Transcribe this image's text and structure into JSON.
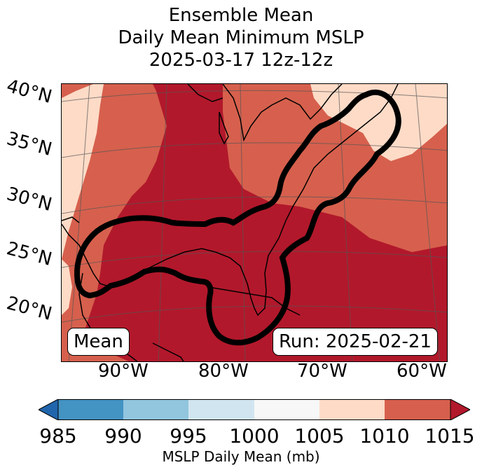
{
  "title": {
    "line1": "Ensemble Mean",
    "line2": "Daily Mean Minimum MSLP",
    "line3": "2025-03-17 12z-12z"
  },
  "map": {
    "lat_labels": [
      "40°N",
      "35°N",
      "30°N",
      "25°N",
      "20°N"
    ],
    "lon_labels": [
      "90°W",
      "80°W",
      "70°W",
      "60°W"
    ],
    "left_box": "Mean",
    "right_box": "Run: 2025-02-21",
    "colors": {
      "c985": "#2166ac",
      "c990": "#4393c3",
      "c995": "#92c5de",
      "c1000": "#d1e5f0",
      "c1005": "#f7f7f7",
      "c1010": "#fddbc7",
      "c1010b": "#d6604d",
      "c1015": "#b2182b"
    }
  },
  "colorbar": {
    "ticks": [
      "985",
      "990",
      "995",
      "1000",
      "1005",
      "1010",
      "1015"
    ],
    "label": "MSLP Daily Mean (mb)"
  }
}
